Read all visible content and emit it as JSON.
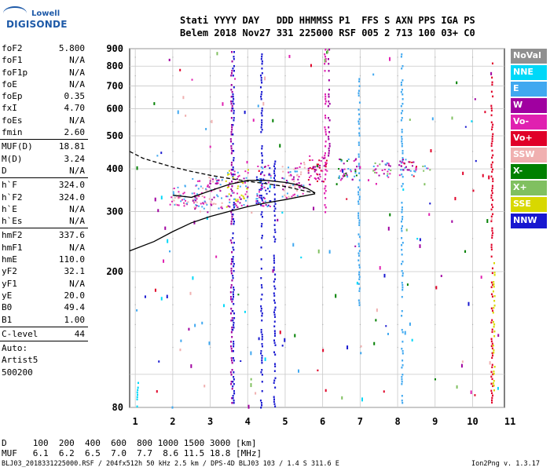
{
  "logo": {
    "line1": "Lowell",
    "line2": "DIGISONDE"
  },
  "header": {
    "line1": "Stati YYYY DAY   DDD HHMMSS P1  FFS S AXN PPS IGA PS",
    "line2": "Belem 2018 Nov27 331 225000 RSF 005 2 713 100 03+ C0"
  },
  "params": {
    "group1": [
      {
        "k": "foF2",
        "v": "5.800"
      },
      {
        "k": "foF1",
        "v": "N/A"
      },
      {
        "k": "foF1p",
        "v": "N/A"
      },
      {
        "k": "foE",
        "v": "N/A"
      },
      {
        "k": "foEp",
        "v": "0.35"
      },
      {
        "k": "fxI",
        "v": "4.70"
      },
      {
        "k": "foEs",
        "v": "N/A"
      },
      {
        "k": "fmin",
        "v": "2.60"
      }
    ],
    "group2": [
      {
        "k": "MUF(D)",
        "v": "18.81"
      },
      {
        "k": "M(D)",
        "v": "3.24"
      },
      {
        "k": "D",
        "v": "N/A"
      }
    ],
    "group3": [
      {
        "k": "h`F",
        "v": "324.0"
      },
      {
        "k": "h`F2",
        "v": "324.0"
      },
      {
        "k": "h`E",
        "v": "N/A"
      },
      {
        "k": "h`Es",
        "v": "N/A"
      }
    ],
    "group4": [
      {
        "k": "hmF2",
        "v": "337.6"
      },
      {
        "k": "hmF1",
        "v": "N/A"
      },
      {
        "k": "hmE",
        "v": "110.0"
      },
      {
        "k": "yF2",
        "v": "32.1"
      },
      {
        "k": "yF1",
        "v": "N/A"
      },
      {
        "k": "yE",
        "v": "20.0"
      },
      {
        "k": "B0",
        "v": "49.4"
      },
      {
        "k": "B1",
        "v": "1.00"
      }
    ],
    "group5": [
      {
        "k": "C-level",
        "v": "44"
      }
    ],
    "auto": [
      "Auto:",
      "Artist5",
      "500200"
    ]
  },
  "legend": [
    {
      "label": "NoVal",
      "color": "#909090"
    },
    {
      "label": "NNE",
      "color": "#00d8f8"
    },
    {
      "label": "E",
      "color": "#40a8f0"
    },
    {
      "label": "W",
      "color": "#a000a0"
    },
    {
      "label": "Vo-",
      "color": "#e020b0"
    },
    {
      "label": "Vo+",
      "color": "#e00028"
    },
    {
      "label": "SSW",
      "color": "#f0b0b0"
    },
    {
      "label": "X-",
      "color": "#008000"
    },
    {
      "label": "X+",
      "color": "#80c060"
    },
    {
      "label": "SSE",
      "color": "#d8d800"
    },
    {
      "label": "NNW",
      "color": "#1818d0"
    }
  ],
  "chart_data": {
    "type": "scatter",
    "title": "",
    "xlabel": "",
    "ylabel": "",
    "xlim": [
      0.85,
      10.85
    ],
    "ylim": [
      80,
      900
    ],
    "x_ticks": [
      1,
      2,
      3,
      4,
      5,
      6,
      7,
      8,
      9,
      10,
      11
    ],
    "y_ticks": [
      80,
      100,
      200,
      300,
      400,
      500,
      600,
      700,
      800,
      900
    ],
    "y_tick_labels": [
      "80",
      "",
      "200",
      "300",
      "400",
      "500",
      "600",
      "700",
      "800",
      "900"
    ],
    "grid": true,
    "series": [
      {
        "name": "X-",
        "role": "ordinary trace",
        "style": "solid",
        "x": [
          2.0,
          2.5,
          3.0,
          3.5,
          4.0,
          4.5,
          5.0,
          5.3,
          5.6,
          5.8
        ],
        "y": [
          335,
          330,
          345,
          360,
          370,
          370,
          365,
          360,
          350,
          340
        ]
      },
      {
        "name": "",
        "role": "profile",
        "style": "solid",
        "x": [
          0.85,
          1.5,
          2.0,
          2.5,
          3.0,
          3.5,
          4.0,
          4.5,
          5.0,
          5.5,
          5.8
        ],
        "y": [
          230,
          245,
          262,
          278,
          290,
          300,
          310,
          318,
          325,
          333,
          338
        ]
      },
      {
        "name": "",
        "role": "fit",
        "style": "dashed",
        "x": [
          0.85,
          1.2,
          1.5,
          2.0,
          2.5,
          3.0,
          3.5,
          4.0,
          4.5,
          5.0,
          5.5,
          5.8
        ],
        "y": [
          450,
          430,
          420,
          405,
          393,
          383,
          375,
          368,
          362,
          355,
          345,
          340
        ]
      }
    ],
    "echo_clusters": [
      {
        "x": [
          1.9,
          2.4
        ],
        "y": [
          310,
          360
        ],
        "colors": [
          "Vo-",
          "SSW",
          "E"
        ]
      },
      {
        "x": [
          2.5,
          3.3
        ],
        "y": [
          300,
          380
        ],
        "colors": [
          "Vo-",
          "W",
          "E",
          "SSW"
        ]
      },
      {
        "x": [
          3.4,
          4.0
        ],
        "y": [
          310,
          400
        ],
        "colors": [
          "Vo-",
          "W",
          "E",
          "SSE"
        ]
      },
      {
        "x": [
          4.2,
          4.6
        ],
        "y": [
          310,
          420
        ],
        "colors": [
          "W",
          "Vo-",
          "E",
          "NNW"
        ]
      },
      {
        "x": [
          4.9,
          5.5
        ],
        "y": [
          330,
          420
        ],
        "colors": [
          "Vo-",
          "W",
          "E",
          "SSW"
        ]
      },
      {
        "x": [
          5.6,
          6.1
        ],
        "y": [
          360,
          440
        ],
        "colors": [
          "Vo-",
          "Vo+",
          "W"
        ]
      },
      {
        "x": [
          6.4,
          6.9
        ],
        "y": [
          370,
          430
        ],
        "colors": [
          "Vo-",
          "W",
          "X-",
          "E"
        ]
      },
      {
        "x": [
          7.3,
          7.8
        ],
        "y": [
          380,
          425
        ],
        "colors": [
          "Vo-",
          "X+",
          "E",
          "W"
        ]
      },
      {
        "x": [
          8.0,
          8.5
        ],
        "y": [
          380,
          430
        ],
        "colors": [
          "Vo-",
          "W",
          "Vo+",
          "E"
        ]
      },
      {
        "x": [
          8.6,
          8.9
        ],
        "y": [
          395,
          410
        ],
        "colors": [
          "E",
          "Vo-",
          "X+"
        ]
      }
    ],
    "vertical_streaks": [
      {
        "x": 3.55,
        "y": [
          80,
          900
        ],
        "color": "W"
      },
      {
        "x": 3.6,
        "y": [
          80,
          900
        ],
        "color": "NNW"
      },
      {
        "x": 4.35,
        "y": [
          80,
          900
        ],
        "color": "NNW"
      },
      {
        "x": 4.7,
        "y": [
          80,
          430
        ],
        "color": "NNW"
      },
      {
        "x": 6.05,
        "y": [
          300,
          900
        ],
        "color": "Vo-"
      },
      {
        "x": 6.15,
        "y": [
          420,
          900
        ],
        "color": "W"
      },
      {
        "x": 6.95,
        "y": [
          160,
          750
        ],
        "color": "E"
      },
      {
        "x": 8.1,
        "y": [
          80,
          900
        ],
        "color": "E"
      },
      {
        "x": 10.5,
        "y": [
          80,
          820
        ],
        "color": "Vo+"
      },
      {
        "x": 10.55,
        "y": [
          90,
          220
        ],
        "color": "SSE"
      },
      {
        "x": 1.05,
        "y": [
          80,
          95
        ],
        "color": "NNE"
      }
    ]
  },
  "footer": {
    "d_row": "D     100  200  400  600  800 1000 1500 3000 [km]",
    "muf_row": "MUF   6.1  6.2  6.5  7.0  7.7  8.6 11.5 18.8 [MHz]",
    "file_line": "BLJ03_2018331225000.RSF / 204fx512h 50 kHz 2.5 km / DPS-4D BLJ03 103 / 1.4 S 311.6 E",
    "version": "Ion2Png v. 1.3.17"
  }
}
